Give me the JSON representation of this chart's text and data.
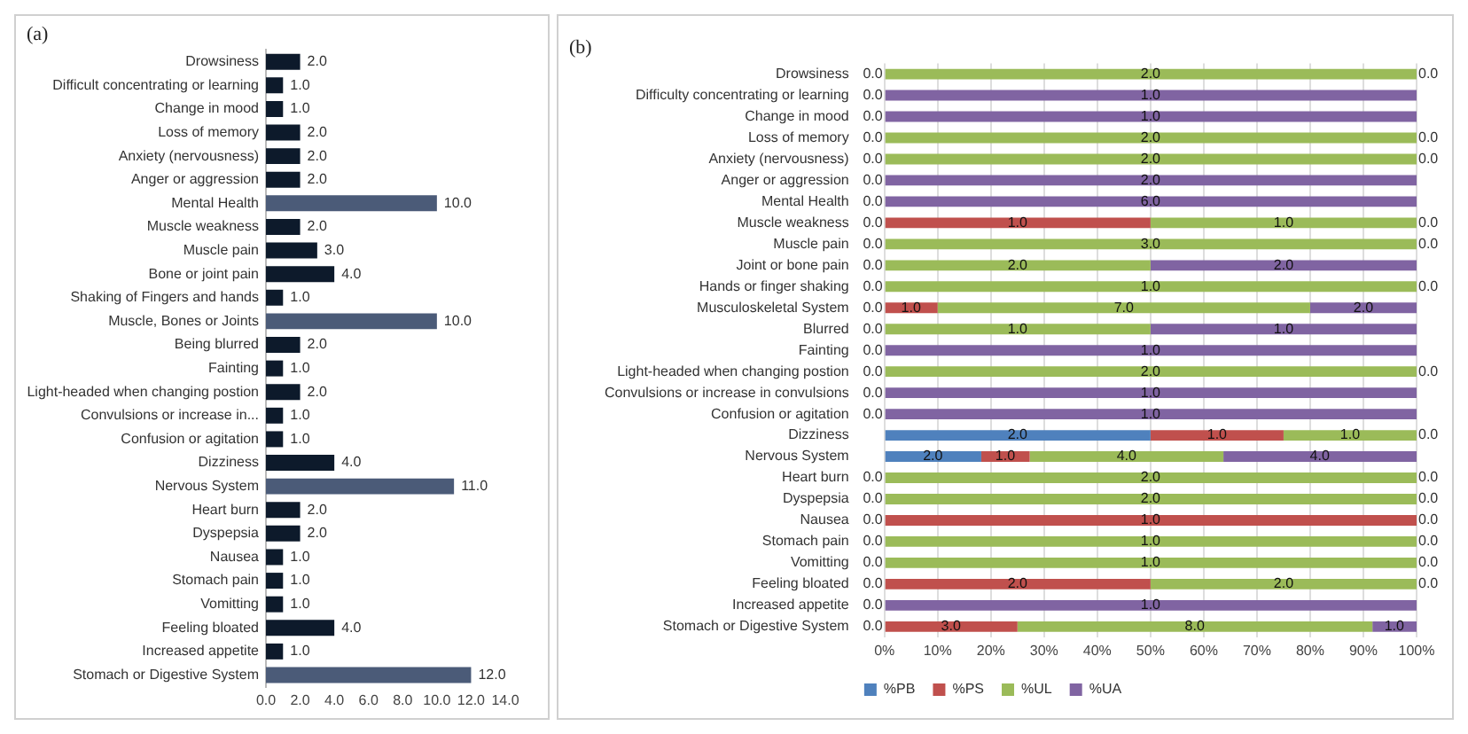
{
  "chart_data": [
    {
      "type": "bar",
      "orientation": "horizontal",
      "title": "(a)",
      "categories": [
        "Drowsiness",
        "Difficult concentrating or learning",
        "Change in mood",
        "Loss of memory",
        "Anxiety (nervousness)",
        "Anger or aggression",
        "Mental Health",
        "Muscle weakness",
        "Muscle pain",
        "Bone or joint pain",
        "Shaking of Fingers and hands",
        "Muscle, Bones or Joints",
        "Being blurred",
        "Fainting",
        "Light-headed when changing postion",
        "Convulsions or increase in...",
        "Confusion or agitation",
        "Dizziness",
        "Nervous System",
        "Heart burn",
        "Dyspepsia",
        "Nausea",
        "Stomach pain",
        "Vomitting",
        "Feeling bloated",
        "Increased appetite",
        "Stomach or Digestive System"
      ],
      "values": [
        2,
        1,
        1,
        2,
        2,
        2,
        10,
        2,
        3,
        4,
        1,
        10,
        2,
        1,
        2,
        1,
        1,
        4,
        11,
        2,
        2,
        1,
        1,
        1,
        4,
        1,
        12
      ],
      "value_labels": [
        "2.0",
        "1.0",
        "1.0",
        "2.0",
        "2.0",
        "2.0",
        "10.0",
        "2.0",
        "3.0",
        "4.0",
        "1.0",
        "10.0",
        "2.0",
        "1.0",
        "2.0",
        "1.0",
        "1.0",
        "4.0",
        "11.0",
        "2.0",
        "2.0",
        "1.0",
        "1.0",
        "1.0",
        "4.0",
        "1.0",
        "12.0"
      ],
      "colors": [
        "#0d1a2b",
        "#0d1a2b",
        "#0d1a2b",
        "#0d1a2b",
        "#0d1a2b",
        "#0d1a2b",
        "#4b5b78",
        "#0d1a2b",
        "#0d1a2b",
        "#0d1a2b",
        "#0d1a2b",
        "#4b5b78",
        "#0d1a2b",
        "#0d1a2b",
        "#0d1a2b",
        "#0d1a2b",
        "#0d1a2b",
        "#0d1a2b",
        "#4b5b78",
        "#0d1a2b",
        "#0d1a2b",
        "#0d1a2b",
        "#0d1a2b",
        "#0d1a2b",
        "#0d1a2b",
        "#0d1a2b",
        "#4b5b78"
      ],
      "xlim": [
        0,
        14
      ],
      "xticks": [
        {
          "value": 0,
          "label": "0.0"
        },
        {
          "value": 2,
          "label": "2.0"
        },
        {
          "value": 4,
          "label": "4.0"
        },
        {
          "value": 6,
          "label": "6.0"
        },
        {
          "value": 8,
          "label": "8.0"
        },
        {
          "value": 10,
          "label": "10.0"
        },
        {
          "value": 12,
          "label": "12.0"
        },
        {
          "value": 14,
          "label": "14.0"
        }
      ]
    },
    {
      "type": "bar",
      "orientation": "horizontal",
      "stacked": true,
      "title": "(b)",
      "grid": "x",
      "legend": "bottom",
      "categories": [
        "Drowsiness",
        "Difficulty concentrating or learning",
        "Change in mood",
        "Loss of memory",
        "Anxiety (nervousness)",
        "Anger or aggression",
        "Mental Health",
        "Muscle weakness",
        "Muscle pain",
        "Joint or bone pain",
        "Hands or finger shaking",
        "Musculoskeletal System",
        "Blurred",
        "Fainting",
        "Light-headed when changing postion",
        "Convulsions or increase in convulsions",
        "Confusion or agitation",
        "Dizziness",
        "Nervous System",
        "Heart burn",
        "Dyspepsia",
        "Nausea",
        "Stomach pain",
        "Vomitting",
        "Feeling bloated",
        "Increased appetite",
        "Stomach or Digestive System"
      ],
      "series": [
        {
          "name": "%PB",
          "color": "#4f81bd",
          "values": [
            0,
            0,
            0,
            0,
            0,
            0,
            0,
            0,
            0,
            0,
            0,
            0,
            0,
            0,
            0,
            0,
            0,
            50,
            18.2,
            0,
            0,
            0,
            0,
            0,
            0,
            0,
            0
          ]
        },
        {
          "name": "%PS",
          "color": "#c0504d",
          "values": [
            0,
            0,
            0,
            0,
            0,
            0,
            0,
            50,
            0,
            0,
            0,
            10,
            0,
            0,
            0,
            0,
            0,
            25,
            9.1,
            0,
            0,
            100,
            0,
            0,
            50,
            0,
            25
          ]
        },
        {
          "name": "%UL",
          "color": "#9bbb59",
          "values": [
            100,
            0,
            0,
            100,
            100,
            0,
            0,
            50,
            100,
            50,
            100,
            70,
            50,
            0,
            100,
            0,
            0,
            25,
            36.4,
            100,
            100,
            0,
            100,
            100,
            50,
            0,
            66.7
          ]
        },
        {
          "name": "%UA",
          "color": "#8064a2",
          "values": [
            0,
            100,
            100,
            0,
            0,
            100,
            100,
            0,
            0,
            50,
            0,
            20,
            50,
            100,
            0,
            100,
            100,
            0,
            36.3,
            0,
            0,
            0,
            0,
            0,
            0,
            100,
            8.3
          ]
        }
      ],
      "annotations": [
        {
          "text": "0.0",
          "x": 0,
          "y": "Drowsiness"
        },
        {
          "text": "2.0",
          "x": 50,
          "y": "Drowsiness"
        },
        {
          "text": "0.0",
          "x": 100,
          "y": "Drowsiness"
        },
        {
          "text": "0.0",
          "x": 0,
          "y": "Difficulty concentrating or learning"
        },
        {
          "text": "1.0",
          "x": 50,
          "y": "Difficulty concentrating or learning"
        },
        {
          "text": "0.0",
          "x": 0,
          "y": "Change in mood"
        },
        {
          "text": "1.0",
          "x": 50,
          "y": "Change in mood"
        },
        {
          "text": "0.0",
          "x": 0,
          "y": "Loss of memory"
        },
        {
          "text": "2.0",
          "x": 50,
          "y": "Loss of memory"
        },
        {
          "text": "0.0",
          "x": 100,
          "y": "Loss of memory"
        },
        {
          "text": "0.0",
          "x": 0,
          "y": "Anxiety (nervousness)"
        },
        {
          "text": "2.0",
          "x": 50,
          "y": "Anxiety (nervousness)"
        },
        {
          "text": "0.0",
          "x": 100,
          "y": "Anxiety (nervousness)"
        },
        {
          "text": "0.0",
          "x": 0,
          "y": "Anger or aggression"
        },
        {
          "text": "2.0",
          "x": 50,
          "y": "Anger or aggression"
        },
        {
          "text": "0.0",
          "x": 0,
          "y": "Mental Health"
        },
        {
          "text": "6.0",
          "x": 50,
          "y": "Mental Health"
        },
        {
          "text": "0.0",
          "x": 0,
          "y": "Muscle weakness"
        },
        {
          "text": "1.0",
          "x": 25,
          "y": "Muscle weakness"
        },
        {
          "text": "1.0",
          "x": 75,
          "y": "Muscle weakness"
        },
        {
          "text": "0.0",
          "x": 100,
          "y": "Muscle weakness"
        },
        {
          "text": "0.0",
          "x": 0,
          "y": "Muscle pain"
        },
        {
          "text": "3.0",
          "x": 50,
          "y": "Muscle pain"
        },
        {
          "text": "0.0",
          "x": 100,
          "y": "Muscle pain"
        },
        {
          "text": "0.0",
          "x": 0,
          "y": "Joint or bone pain"
        },
        {
          "text": "2.0",
          "x": 25,
          "y": "Joint or bone pain"
        },
        {
          "text": "2.0",
          "x": 75,
          "y": "Joint or bone pain"
        },
        {
          "text": "0.0",
          "x": 0,
          "y": "Hands or finger shaking"
        },
        {
          "text": "1.0",
          "x": 50,
          "y": "Hands or finger shaking"
        },
        {
          "text": "0.0",
          "x": 100,
          "y": "Hands or finger shaking"
        },
        {
          "text": "0.0",
          "x": 0,
          "y": "Musculoskeletal System"
        },
        {
          "text": "1.0",
          "x": 5,
          "y": "Musculoskeletal System"
        },
        {
          "text": "7.0",
          "x": 45,
          "y": "Musculoskeletal System"
        },
        {
          "text": "2.0",
          "x": 90,
          "y": "Musculoskeletal System"
        },
        {
          "text": "0.0",
          "x": 0,
          "y": "Blurred"
        },
        {
          "text": "1.0",
          "x": 25,
          "y": "Blurred"
        },
        {
          "text": "1.0",
          "x": 75,
          "y": "Blurred"
        },
        {
          "text": "0.0",
          "x": 0,
          "y": "Fainting"
        },
        {
          "text": "1.0",
          "x": 50,
          "y": "Fainting"
        },
        {
          "text": "0.0",
          "x": 0,
          "y": "Light-headed when changing postion"
        },
        {
          "text": "2.0",
          "x": 50,
          "y": "Light-headed when changing postion"
        },
        {
          "text": "0.0",
          "x": 100,
          "y": "Light-headed when changing postion"
        },
        {
          "text": "0.0",
          "x": 0,
          "y": "Convulsions or increase in convulsions"
        },
        {
          "text": "1.0",
          "x": 50,
          "y": "Convulsions or increase in convulsions"
        },
        {
          "text": "0.0",
          "x": 0,
          "y": "Confusion or agitation"
        },
        {
          "text": "1.0",
          "x": 50,
          "y": "Confusion or agitation"
        },
        {
          "text": "2.0",
          "x": 25,
          "y": "Dizziness"
        },
        {
          "text": "1.0",
          "x": 62.5,
          "y": "Dizziness"
        },
        {
          "text": "1.0",
          "x": 87.5,
          "y": "Dizziness"
        },
        {
          "text": "0.0",
          "x": 100,
          "y": "Dizziness"
        },
        {
          "text": "2.0",
          "x": 9.1,
          "y": "Nervous System"
        },
        {
          "text": "1.0",
          "x": 22.7,
          "y": "Nervous System"
        },
        {
          "text": "4.0",
          "x": 45.5,
          "y": "Nervous System"
        },
        {
          "text": "4.0",
          "x": 81.8,
          "y": "Nervous System"
        },
        {
          "text": "0.0",
          "x": 0,
          "y": "Heart burn"
        },
        {
          "text": "2.0",
          "x": 50,
          "y": "Heart burn"
        },
        {
          "text": "0.0",
          "x": 100,
          "y": "Heart burn"
        },
        {
          "text": "0.0",
          "x": 0,
          "y": "Dyspepsia"
        },
        {
          "text": "2.0",
          "x": 50,
          "y": "Dyspepsia"
        },
        {
          "text": "0.0",
          "x": 100,
          "y": "Dyspepsia"
        },
        {
          "text": "0.0",
          "x": 0,
          "y": "Nausea"
        },
        {
          "text": "1.0",
          "x": 50,
          "y": "Nausea"
        },
        {
          "text": "0.0",
          "x": 100,
          "y": "Nausea"
        },
        {
          "text": "0.0",
          "x": 0,
          "y": "Stomach pain"
        },
        {
          "text": "1.0",
          "x": 50,
          "y": "Stomach pain"
        },
        {
          "text": "0.0",
          "x": 100,
          "y": "Stomach pain"
        },
        {
          "text": "0.0",
          "x": 0,
          "y": "Vomitting"
        },
        {
          "text": "1.0",
          "x": 50,
          "y": "Vomitting"
        },
        {
          "text": "0.0",
          "x": 100,
          "y": "Vomitting"
        },
        {
          "text": "0.0",
          "x": 0,
          "y": "Feeling bloated"
        },
        {
          "text": "2.0",
          "x": 25,
          "y": "Feeling bloated"
        },
        {
          "text": "2.0",
          "x": 75,
          "y": "Feeling bloated"
        },
        {
          "text": "0.0",
          "x": 100,
          "y": "Feeling bloated"
        },
        {
          "text": "0.0",
          "x": 0,
          "y": "Increased appetite"
        },
        {
          "text": "1.0",
          "x": 50,
          "y": "Increased appetite"
        },
        {
          "text": "0.0",
          "x": 0,
          "y": "Stomach or Digestive System"
        },
        {
          "text": "3.0",
          "x": 12.5,
          "y": "Stomach or Digestive System"
        },
        {
          "text": "8.0",
          "x": 58.3,
          "y": "Stomach or Digestive System"
        },
        {
          "text": "1.0",
          "x": 95.8,
          "y": "Stomach or Digestive System"
        }
      ],
      "xlim": [
        0,
        100
      ],
      "xticks": [
        {
          "value": 0,
          "label": "0%"
        },
        {
          "value": 10,
          "label": "10%"
        },
        {
          "value": 20,
          "label": "20%"
        },
        {
          "value": 30,
          "label": "30%"
        },
        {
          "value": 40,
          "label": "40%"
        },
        {
          "value": 50,
          "label": "50%"
        },
        {
          "value": 60,
          "label": "60%"
        },
        {
          "value": 70,
          "label": "70%"
        },
        {
          "value": 80,
          "label": "80%"
        },
        {
          "value": 90,
          "label": "90%"
        },
        {
          "value": 100,
          "label": "100%"
        }
      ]
    }
  ]
}
